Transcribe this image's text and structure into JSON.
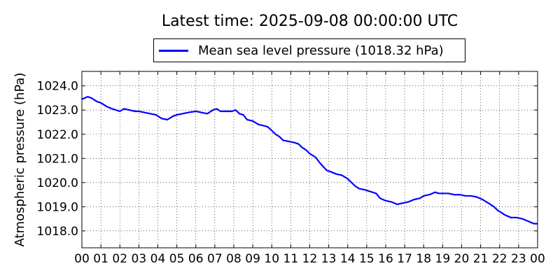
{
  "chart_data": {
    "type": "line",
    "title": "Latest time: 2025-09-08 00:00:00 UTC",
    "ylabel": "Atmospheric pressure (hPa)",
    "xlabel": "",
    "xlim": [
      0,
      24
    ],
    "ylim": [
      1017.3,
      1024.6
    ],
    "grid": true,
    "legend_position": "top-center",
    "x_ticks": [
      0,
      1,
      2,
      3,
      4,
      5,
      6,
      7,
      8,
      9,
      10,
      11,
      12,
      13,
      14,
      15,
      16,
      17,
      18,
      19,
      20,
      21,
      22,
      23,
      24
    ],
    "x_tick_labels": [
      "00",
      "01",
      "02",
      "03",
      "04",
      "05",
      "06",
      "07",
      "08",
      "09",
      "10",
      "11",
      "12",
      "13",
      "14",
      "15",
      "16",
      "17",
      "18",
      "19",
      "20",
      "21",
      "22",
      "23",
      "00"
    ],
    "y_ticks": [
      1018.0,
      1019.0,
      1020.0,
      1021.0,
      1022.0,
      1023.0,
      1024.0
    ],
    "y_tick_labels": [
      "1018.0",
      "1019.0",
      "1020.0",
      "1021.0",
      "1022.0",
      "1023.0",
      "1024.0"
    ],
    "series": [
      {
        "name": "Mean sea level pressure (1018.32 hPa)",
        "color": "#0000ff",
        "x": [
          0,
          0.3,
          0.5,
          0.8,
          1.0,
          1.3,
          1.6,
          2.0,
          2.2,
          2.5,
          2.8,
          3.0,
          3.3,
          3.6,
          3.9,
          4.2,
          4.5,
          4.8,
          5.0,
          5.3,
          5.6,
          6.0,
          6.3,
          6.6,
          6.9,
          7.1,
          7.3,
          7.6,
          7.9,
          8.1,
          8.3,
          8.5,
          8.7,
          9.0,
          9.3,
          9.6,
          9.8,
          10.0,
          10.2,
          10.4,
          10.6,
          10.9,
          11.2,
          11.4,
          11.6,
          11.8,
          12.0,
          12.3,
          12.6,
          12.9,
          13.1,
          13.4,
          13.7,
          14.0,
          14.2,
          14.4,
          14.6,
          14.9,
          15.1,
          15.3,
          15.5,
          15.7,
          16.0,
          16.3,
          16.6,
          16.9,
          17.2,
          17.5,
          17.8,
          18.0,
          18.3,
          18.6,
          18.8,
          19.0,
          19.3,
          19.6,
          19.9,
          20.2,
          20.5,
          20.8,
          21.1,
          21.4,
          21.7,
          21.9,
          22.1,
          22.3,
          22.6,
          22.9,
          23.2,
          23.5,
          23.8,
          24.0
        ],
        "y": [
          1023.45,
          1023.55,
          1023.5,
          1023.35,
          1023.3,
          1023.15,
          1023.05,
          1022.95,
          1023.05,
          1023.0,
          1022.95,
          1022.95,
          1022.9,
          1022.85,
          1022.8,
          1022.65,
          1022.6,
          1022.75,
          1022.8,
          1022.85,
          1022.9,
          1022.95,
          1022.9,
          1022.85,
          1023.0,
          1023.05,
          1022.95,
          1022.95,
          1022.95,
          1023.0,
          1022.85,
          1022.8,
          1022.6,
          1022.55,
          1022.4,
          1022.35,
          1022.3,
          1022.15,
          1022.0,
          1021.9,
          1021.75,
          1021.7,
          1021.65,
          1021.6,
          1021.45,
          1021.35,
          1021.2,
          1021.05,
          1020.75,
          1020.5,
          1020.45,
          1020.35,
          1020.3,
          1020.15,
          1020.0,
          1019.85,
          1019.75,
          1019.7,
          1019.65,
          1019.6,
          1019.55,
          1019.35,
          1019.25,
          1019.2,
          1019.1,
          1019.15,
          1019.2,
          1019.3,
          1019.35,
          1019.45,
          1019.5,
          1019.6,
          1019.55,
          1019.55,
          1019.55,
          1019.5,
          1019.5,
          1019.45,
          1019.45,
          1019.4,
          1019.3,
          1019.15,
          1019.0,
          1018.85,
          1018.75,
          1018.65,
          1018.55,
          1018.55,
          1018.5,
          1018.4,
          1018.3,
          1018.3
        ]
      }
    ]
  }
}
